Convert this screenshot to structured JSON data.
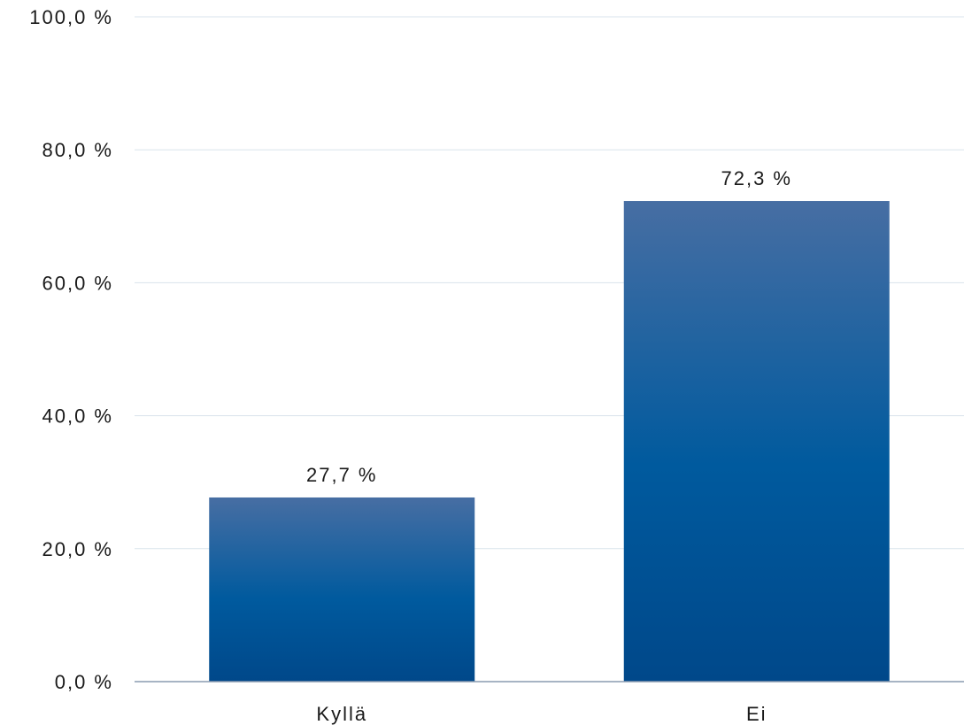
{
  "chart_data": {
    "type": "bar",
    "categories": [
      "Kyllä",
      "Ei"
    ],
    "values": [
      27.7,
      72.3
    ],
    "value_labels": [
      "27,7 %",
      "72,3 %"
    ],
    "ylim": [
      0,
      100
    ],
    "y_ticks": [
      0,
      20,
      40,
      60,
      80,
      100
    ],
    "y_tick_labels": [
      "0,0 %",
      "20,0 %",
      "40,0 %",
      "60,0 %",
      "80,0 %",
      "100,0 %"
    ],
    "grid": true,
    "title": "",
    "xlabel": "",
    "ylabel": ""
  },
  "colors": {
    "bar_top": "#476ea3",
    "bar_mid": "#005a9e",
    "bar_bottom": "#00488a",
    "grid": "#d9e3ec",
    "axis": "#8a9bb0"
  }
}
